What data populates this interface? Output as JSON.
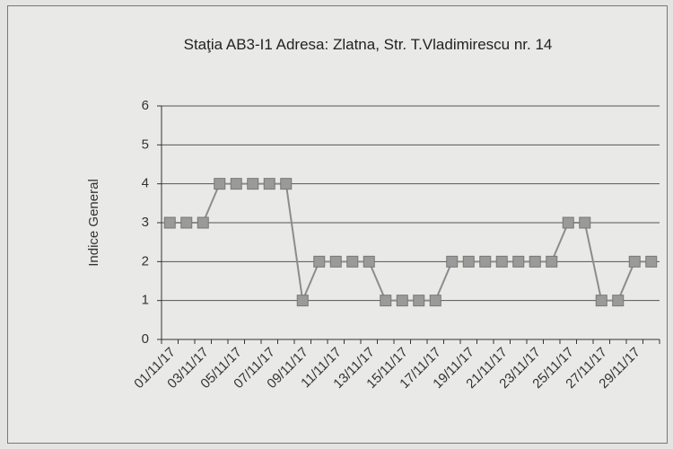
{
  "chart_data": {
    "type": "line",
    "title": "Staţia AB3-I1 Adresa: Zlatna, Str. T.Vladimirescu nr. 14",
    "y_label": "Indice General",
    "categories": [
      "01/11/17",
      null,
      "03/11/17",
      null,
      "05/11/17",
      null,
      "07/11/17",
      null,
      "09/11/17",
      null,
      "11/11/17",
      null,
      "13/11/17",
      null,
      "15/11/17",
      null,
      "17/11/17",
      null,
      "19/11/17",
      null,
      "21/11/17",
      null,
      "23/11/17",
      null,
      "25/11/17",
      null,
      "27/11/17",
      null,
      "29/11/17",
      null
    ],
    "series": [
      {
        "name": "Indice General",
        "color": "#8c8c8c",
        "marker_color": "#9a9a9a",
        "values": [
          3,
          3,
          3,
          4,
          4,
          4,
          4,
          4,
          1,
          2,
          2,
          2,
          2,
          1,
          1,
          1,
          1,
          2,
          2,
          2,
          2,
          2,
          2,
          2,
          3,
          3,
          1,
          1,
          2,
          2
        ]
      }
    ],
    "ylim": [
      0,
      6
    ],
    "yticks": [
      0,
      1,
      2,
      3,
      4,
      5,
      6
    ],
    "grid": true
  }
}
